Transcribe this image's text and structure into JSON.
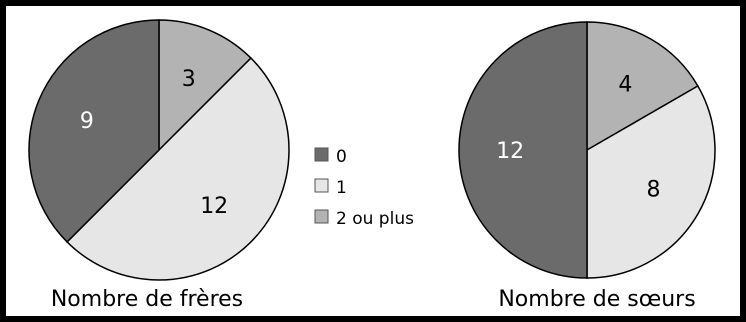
{
  "colors": {
    "0": "#6b6b6b",
    "1": "#e6e6e6",
    "2 ou plus": "#b3b3b3"
  },
  "legend": [
    {
      "label": "0"
    },
    {
      "label": "1"
    },
    {
      "label": "2 ou plus"
    }
  ],
  "chart_data": [
    {
      "type": "pie",
      "title": "Nombre de frères",
      "slices": [
        {
          "category": "2 ou plus",
          "value": 3
        },
        {
          "category": "1",
          "value": 12
        },
        {
          "category": "0",
          "value": 9
        }
      ]
    },
    {
      "type": "pie",
      "title": "Nombre de sœurs",
      "slices": [
        {
          "category": "2 ou plus",
          "value": 4
        },
        {
          "category": "1",
          "value": 8
        },
        {
          "category": "0",
          "value": 12
        }
      ]
    }
  ]
}
